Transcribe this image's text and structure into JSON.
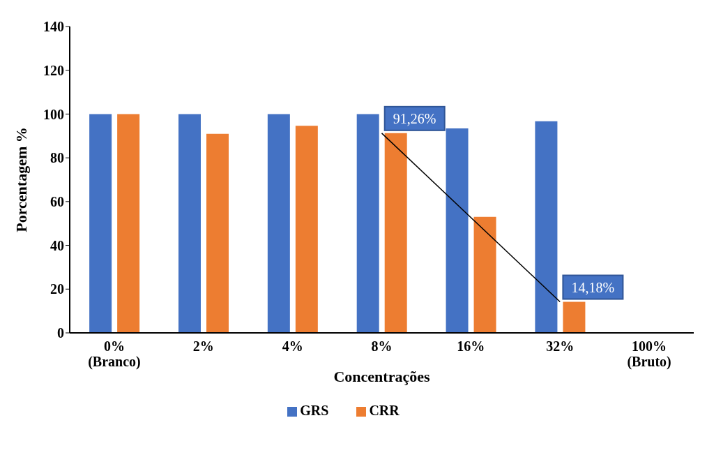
{
  "chart_data": {
    "type": "bar",
    "xlabel": "Concentrações",
    "ylabel": "Porcentagem %",
    "categories": [
      "0%\n(Branco)",
      "2%",
      "4%",
      "8%",
      "16%",
      "32%",
      "100%\n(Bruto)"
    ],
    "series": [
      {
        "name": "GRS",
        "color": "#4472c4",
        "values": [
          100,
          100,
          100,
          100,
          93.4,
          96.7,
          null
        ]
      },
      {
        "name": "CRR",
        "color": "#ed7d31",
        "values": [
          100,
          91,
          94.6,
          91.26,
          53,
          14.18,
          null
        ],
        "value_labels": [
          null,
          null,
          null,
          "91,26%",
          null,
          "14,18%",
          null
        ]
      },
      {
        "type": "line",
        "color": "#000000",
        "x": [
          "8%",
          "32%"
        ],
        "values": [
          91.26,
          14.18
        ]
      }
    ],
    "ylim": [
      0,
      140
    ],
    "yticks": [
      0,
      20,
      40,
      60,
      80,
      100,
      120,
      140
    ],
    "grid": false,
    "legend": "bottom",
    "marker": "none"
  }
}
